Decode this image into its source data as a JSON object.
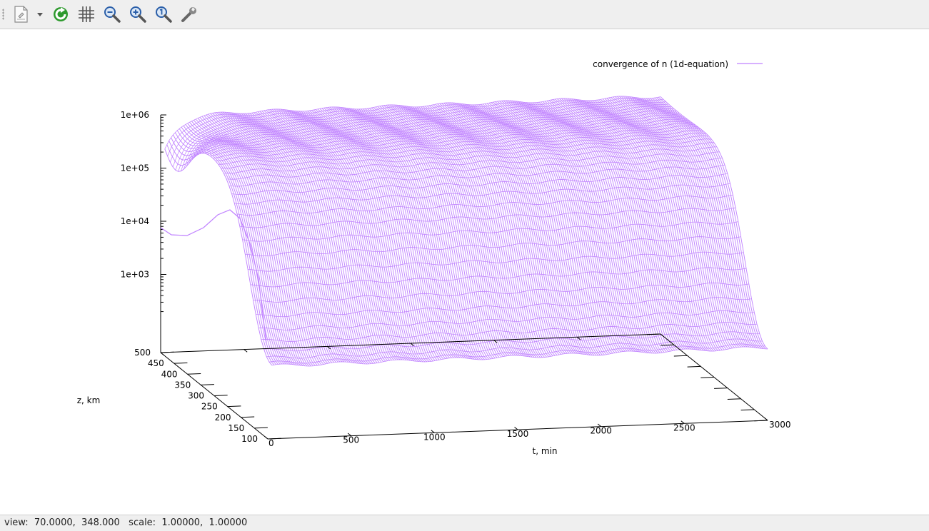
{
  "toolbar": {
    "buttons": [
      {
        "name": "export-icon"
      },
      {
        "name": "dropdown-arrow-icon"
      },
      {
        "name": "replot-icon"
      },
      {
        "name": "grid-icon"
      },
      {
        "name": "zoom-out-icon"
      },
      {
        "name": "zoom-in-icon"
      },
      {
        "name": "zoom-fit-icon"
      },
      {
        "name": "settings-wrench-icon"
      }
    ],
    "colors": {
      "replot": "#2e9a2e",
      "zoom": "#2a5ea8"
    }
  },
  "chart_data": {
    "type": "surface",
    "legend": {
      "label": "convergence of n (1d-equation)",
      "position": "top-right"
    },
    "color": "#bf80ff",
    "z_axis": {
      "scale": "log",
      "tick_labels": [
        "1e+06",
        "1e+05",
        "1e+04",
        "1e+03"
      ],
      "range": [
        100,
        1000000
      ]
    },
    "depth_axis": {
      "label": "z, km",
      "tick_labels": [
        "500",
        "450",
        "400",
        "350",
        "300",
        "250",
        "200",
        "150",
        "100"
      ],
      "range": [
        100,
        500
      ]
    },
    "x_axis": {
      "label": "t, min",
      "tick_labels": [
        "0",
        "500",
        "1000",
        "1500",
        "2000",
        "2500",
        "3000"
      ],
      "range": [
        0,
        3000
      ]
    },
    "grid": false,
    "view": {
      "rot_x": 70,
      "rot_z": 348,
      "scale": 1,
      "scale_z": 1
    }
  },
  "status": {
    "text": "view:  70.0000,  348.000   scale:  1.00000,  1.00000"
  }
}
